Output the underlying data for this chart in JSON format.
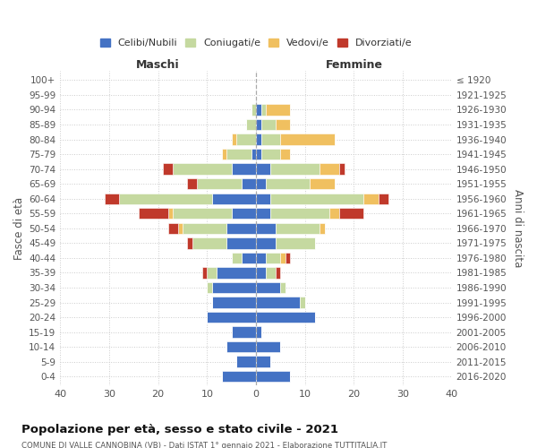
{
  "age_groups": [
    "0-4",
    "5-9",
    "10-14",
    "15-19",
    "20-24",
    "25-29",
    "30-34",
    "35-39",
    "40-44",
    "45-49",
    "50-54",
    "55-59",
    "60-64",
    "65-69",
    "70-74",
    "75-79",
    "80-84",
    "85-89",
    "90-94",
    "95-99",
    "100+"
  ],
  "birth_years": [
    "2016-2020",
    "2011-2015",
    "2006-2010",
    "2001-2005",
    "1996-2000",
    "1991-1995",
    "1986-1990",
    "1981-1985",
    "1976-1980",
    "1971-1975",
    "1966-1970",
    "1961-1965",
    "1956-1960",
    "1951-1955",
    "1946-1950",
    "1941-1945",
    "1936-1940",
    "1931-1935",
    "1926-1930",
    "1921-1925",
    "≤ 1920"
  ],
  "maschi": {
    "celibi": [
      7,
      4,
      6,
      5,
      10,
      9,
      9,
      8,
      3,
      6,
      6,
      5,
      9,
      3,
      5,
      1,
      0,
      0,
      0,
      0,
      0
    ],
    "coniugati": [
      0,
      0,
      0,
      0,
      0,
      0,
      1,
      2,
      2,
      7,
      9,
      12,
      19,
      9,
      12,
      5,
      4,
      2,
      1,
      0,
      0
    ],
    "vedovi": [
      0,
      0,
      0,
      0,
      0,
      0,
      0,
      0,
      0,
      0,
      1,
      1,
      0,
      0,
      0,
      1,
      1,
      0,
      0,
      0,
      0
    ],
    "divorziati": [
      0,
      0,
      0,
      0,
      0,
      0,
      0,
      1,
      0,
      1,
      2,
      6,
      3,
      2,
      2,
      0,
      0,
      0,
      0,
      0,
      0
    ]
  },
  "femmine": {
    "nubili": [
      7,
      3,
      5,
      1,
      12,
      9,
      5,
      2,
      2,
      4,
      4,
      3,
      3,
      2,
      3,
      1,
      1,
      1,
      1,
      0,
      0
    ],
    "coniugate": [
      0,
      0,
      0,
      0,
      0,
      1,
      1,
      2,
      3,
      8,
      9,
      12,
      19,
      9,
      10,
      4,
      4,
      3,
      1,
      0,
      0
    ],
    "vedove": [
      0,
      0,
      0,
      0,
      0,
      0,
      0,
      0,
      1,
      0,
      1,
      2,
      3,
      5,
      4,
      2,
      11,
      3,
      5,
      0,
      0
    ],
    "divorziate": [
      0,
      0,
      0,
      0,
      0,
      0,
      0,
      1,
      1,
      0,
      0,
      5,
      2,
      0,
      1,
      0,
      0,
      0,
      0,
      0,
      0
    ]
  },
  "colors": {
    "celibi": "#4472c4",
    "coniugati": "#c5d9a0",
    "vedovi": "#f0c060",
    "divorziati": "#c0392b"
  },
  "xlim": 40,
  "title": "Popolazione per età, sesso e stato civile - 2021",
  "subtitle": "COMUNE DI VALLE CANNOBINA (VB) - Dati ISTAT 1° gennaio 2021 - Elaborazione TUTTITALIA.IT",
  "ylabel_left": "Fasce di età",
  "ylabel_right": "Anni di nascita",
  "xlabel_maschi": "Maschi",
  "xlabel_femmine": "Femmine",
  "legend_labels": [
    "Celibi/Nubili",
    "Coniugati/e",
    "Vedovi/e",
    "Divorziati/e"
  ],
  "background_color": "#ffffff",
  "grid_color": "#cccccc"
}
